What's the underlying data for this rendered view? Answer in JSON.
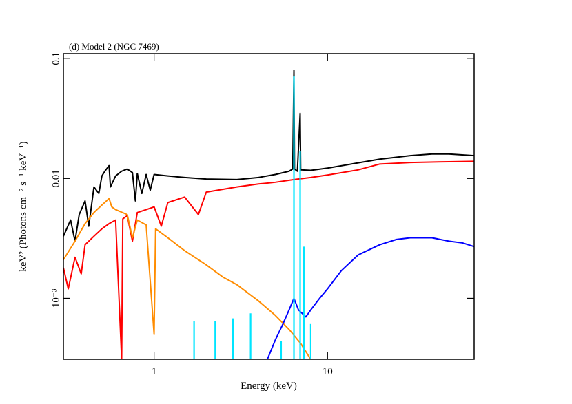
{
  "chart_data": {
    "type": "line",
    "title": "(d) Model 2 (NGC 7469)",
    "xlabel": "Energy (keV)",
    "ylabel": "keV² (Photons cm⁻² s⁻¹ keV⁻¹)",
    "xscale": "log",
    "yscale": "log",
    "xlim": [
      0.3,
      70
    ],
    "ylim": [
      0.00031,
      0.11
    ],
    "xticks": [
      1,
      10
    ],
    "yticks": [
      {
        "value": 0.001,
        "label": "10⁻³"
      },
      0.01,
      0.1
    ],
    "series": [
      {
        "color": "#000000",
        "x": [
          0.3,
          0.33,
          0.35,
          0.37,
          0.4,
          0.42,
          0.45,
          0.48,
          0.5,
          0.52,
          0.55,
          0.56,
          0.6,
          0.65,
          0.7,
          0.75,
          0.78,
          0.8,
          0.85,
          0.9,
          0.95,
          1.0,
          1.2,
          1.5,
          2,
          3,
          4,
          5,
          6,
          6.3,
          6.4,
          6.45,
          6.7,
          6.95,
          7.0,
          8,
          10,
          15,
          20,
          30,
          40,
          50,
          70
        ],
        "values": [
          0.0033,
          0.0045,
          0.003,
          0.005,
          0.0065,
          0.004,
          0.0085,
          0.0075,
          0.0105,
          0.0115,
          0.0128,
          0.0085,
          0.0105,
          0.0115,
          0.012,
          0.0112,
          0.0065,
          0.011,
          0.0075,
          0.0108,
          0.008,
          0.0108,
          0.0105,
          0.0102,
          0.0099,
          0.0098,
          0.0102,
          0.0108,
          0.0115,
          0.012,
          0.08,
          0.012,
          0.0115,
          0.035,
          0.0118,
          0.0117,
          0.0122,
          0.0135,
          0.0145,
          0.0155,
          0.016,
          0.016,
          0.0155
        ]
      },
      {
        "color": "#ff0000",
        "x": [
          0.3,
          0.32,
          0.35,
          0.38,
          0.4,
          0.45,
          0.5,
          0.55,
          0.6,
          0.65,
          0.66,
          0.7,
          0.75,
          0.8,
          0.9,
          1.0,
          1.1,
          1.2,
          1.5,
          1.8,
          2,
          3,
          4,
          5,
          6.4,
          8,
          10,
          15,
          20,
          30,
          50,
          70
        ],
        "values": [
          0.0018,
          0.0012,
          0.0022,
          0.0016,
          0.0028,
          0.0033,
          0.0038,
          0.0042,
          0.0045,
          0.00031,
          0.0046,
          0.0049,
          0.003,
          0.0052,
          0.0055,
          0.0058,
          0.004,
          0.0063,
          0.007,
          0.005,
          0.0077,
          0.0085,
          0.009,
          0.0093,
          0.0098,
          0.0102,
          0.0107,
          0.0118,
          0.0132,
          0.0136,
          0.0138,
          0.0139
        ]
      },
      {
        "color": "#ff8c00",
        "x": [
          0.3,
          0.35,
          0.4,
          0.45,
          0.5,
          0.55,
          0.57,
          0.6,
          0.7,
          0.75,
          0.8,
          0.9,
          1.0,
          1.02,
          1.2,
          1.5,
          2,
          2.5,
          3,
          4,
          5,
          6,
          7,
          8
        ],
        "values": [
          0.0021,
          0.003,
          0.0042,
          0.0052,
          0.006,
          0.0068,
          0.0058,
          0.0055,
          0.005,
          0.0032,
          0.0045,
          0.0041,
          0.0005,
          0.0038,
          0.0032,
          0.0025,
          0.0019,
          0.0015,
          0.0013,
          0.00095,
          0.00072,
          0.00055,
          0.00042,
          0.00031
        ]
      },
      {
        "color": "#0000ff",
        "x": [
          4.5,
          5,
          5.5,
          6,
          6.4,
          6.8,
          7.5,
          8,
          9,
          10,
          12,
          15,
          20,
          25,
          30,
          40,
          50,
          60,
          70
        ],
        "values": [
          0.00031,
          0.00045,
          0.0006,
          0.0008,
          0.001,
          0.0008,
          0.0007,
          0.0008,
          0.001,
          0.0012,
          0.0017,
          0.0023,
          0.0028,
          0.0031,
          0.0032,
          0.0032,
          0.003,
          0.0029,
          0.0027
        ]
      },
      {
        "color": "#00e5ff",
        "style": "stem",
        "x": [
          1.7,
          2.25,
          2.85,
          3.6,
          5.4,
          6.4,
          6.95,
          7.3,
          8.0
        ],
        "values": [
          0.00065,
          0.00065,
          0.00068,
          0.00075,
          0.00044,
          0.071,
          0.017,
          0.0027,
          0.00061
        ]
      }
    ]
  }
}
